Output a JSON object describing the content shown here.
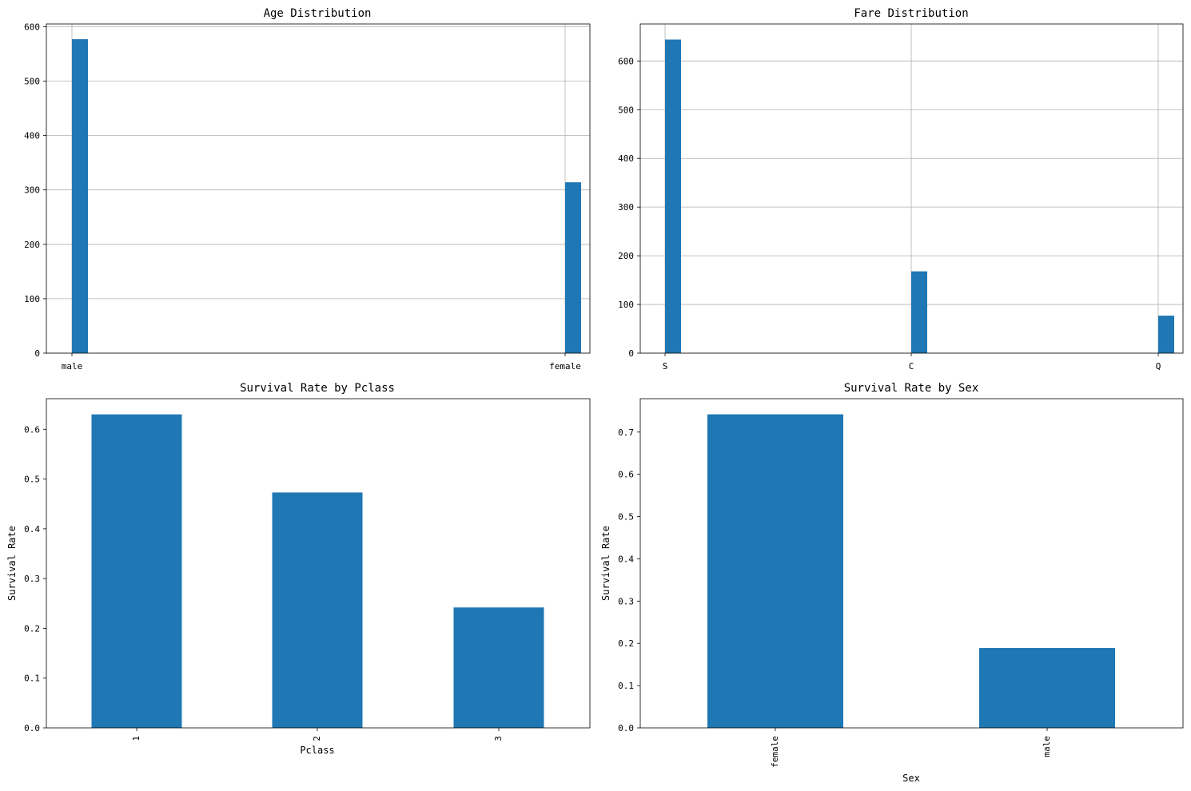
{
  "colors": {
    "bar": "#1f77b4",
    "grid": "#b0b0b0",
    "axis": "#000000",
    "background": "#ffffff"
  },
  "chart_data": [
    {
      "type": "bar",
      "title": "Age Distribution",
      "xlabel": "",
      "ylabel": "",
      "categories": [
        "male",
        "female"
      ],
      "values": [
        577,
        314
      ],
      "yticks": [
        0,
        100,
        200,
        300,
        400,
        500,
        600
      ],
      "ylim": [
        0,
        605
      ],
      "grid": true
    },
    {
      "type": "bar",
      "title": "Fare Distribution",
      "xlabel": "",
      "ylabel": "",
      "categories": [
        "S",
        "C",
        "Q"
      ],
      "values": [
        644,
        168,
        77
      ],
      "yticks": [
        0,
        100,
        200,
        300,
        400,
        500,
        600
      ],
      "ylim": [
        0,
        676
      ],
      "grid": true
    },
    {
      "type": "bar",
      "title": "Survival Rate by Pclass",
      "xlabel": "Pclass",
      "ylabel": "Survival Rate",
      "categories": [
        "1",
        "2",
        "3"
      ],
      "values": [
        0.63,
        0.473,
        0.242
      ],
      "yticks": [
        "0.0",
        "0.1",
        "0.2",
        "0.3",
        "0.4",
        "0.5",
        "0.6"
      ],
      "ylim": [
        0,
        0.6615
      ],
      "grid": false
    },
    {
      "type": "bar",
      "title": "Survival Rate by Sex",
      "xlabel": "Sex",
      "ylabel": "Survival Rate",
      "categories": [
        "female",
        "male"
      ],
      "values": [
        0.742,
        0.189
      ],
      "yticks": [
        "0.0",
        "0.1",
        "0.2",
        "0.3",
        "0.4",
        "0.5",
        "0.6",
        "0.7"
      ],
      "ylim": [
        0,
        0.779
      ],
      "grid": false
    }
  ]
}
